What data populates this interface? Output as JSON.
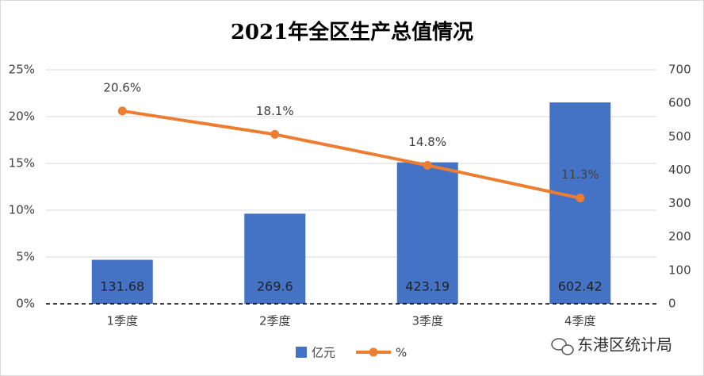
{
  "chart_data": {
    "type": "bar",
    "title": "2021年全区生产总值情况",
    "categories": [
      "1季度",
      "2季度",
      "3季度",
      "4季度"
    ],
    "series": [
      {
        "name": "亿元",
        "type": "bar",
        "axis": "y2",
        "color": "#4472c4",
        "values": [
          131.68,
          269.6,
          423.19,
          602.42
        ]
      },
      {
        "name": "%",
        "type": "line",
        "color": "#ed7d31",
        "values": [
          20.6,
          18.1,
          14.8,
          11.3
        ],
        "value_labels": [
          "20.6%",
          "18.1%",
          "14.8%",
          "11.3%"
        ]
      }
    ],
    "ylim": [
      0,
      25
    ],
    "yticks": [
      {
        "value": 0,
        "label": "0%"
      },
      {
        "value": 5,
        "label": "5%"
      },
      {
        "value": 10,
        "label": "10%"
      },
      {
        "value": 15,
        "label": "15%"
      },
      {
        "value": 20,
        "label": "20%"
      },
      {
        "value": 25,
        "label": "25%"
      }
    ],
    "y2lim": [
      0,
      700
    ],
    "y2ticks": [
      0,
      100,
      200,
      300,
      400,
      500,
      600,
      700
    ],
    "grid": true,
    "legend": "bottom"
  },
  "watermark": "东港区统计局"
}
